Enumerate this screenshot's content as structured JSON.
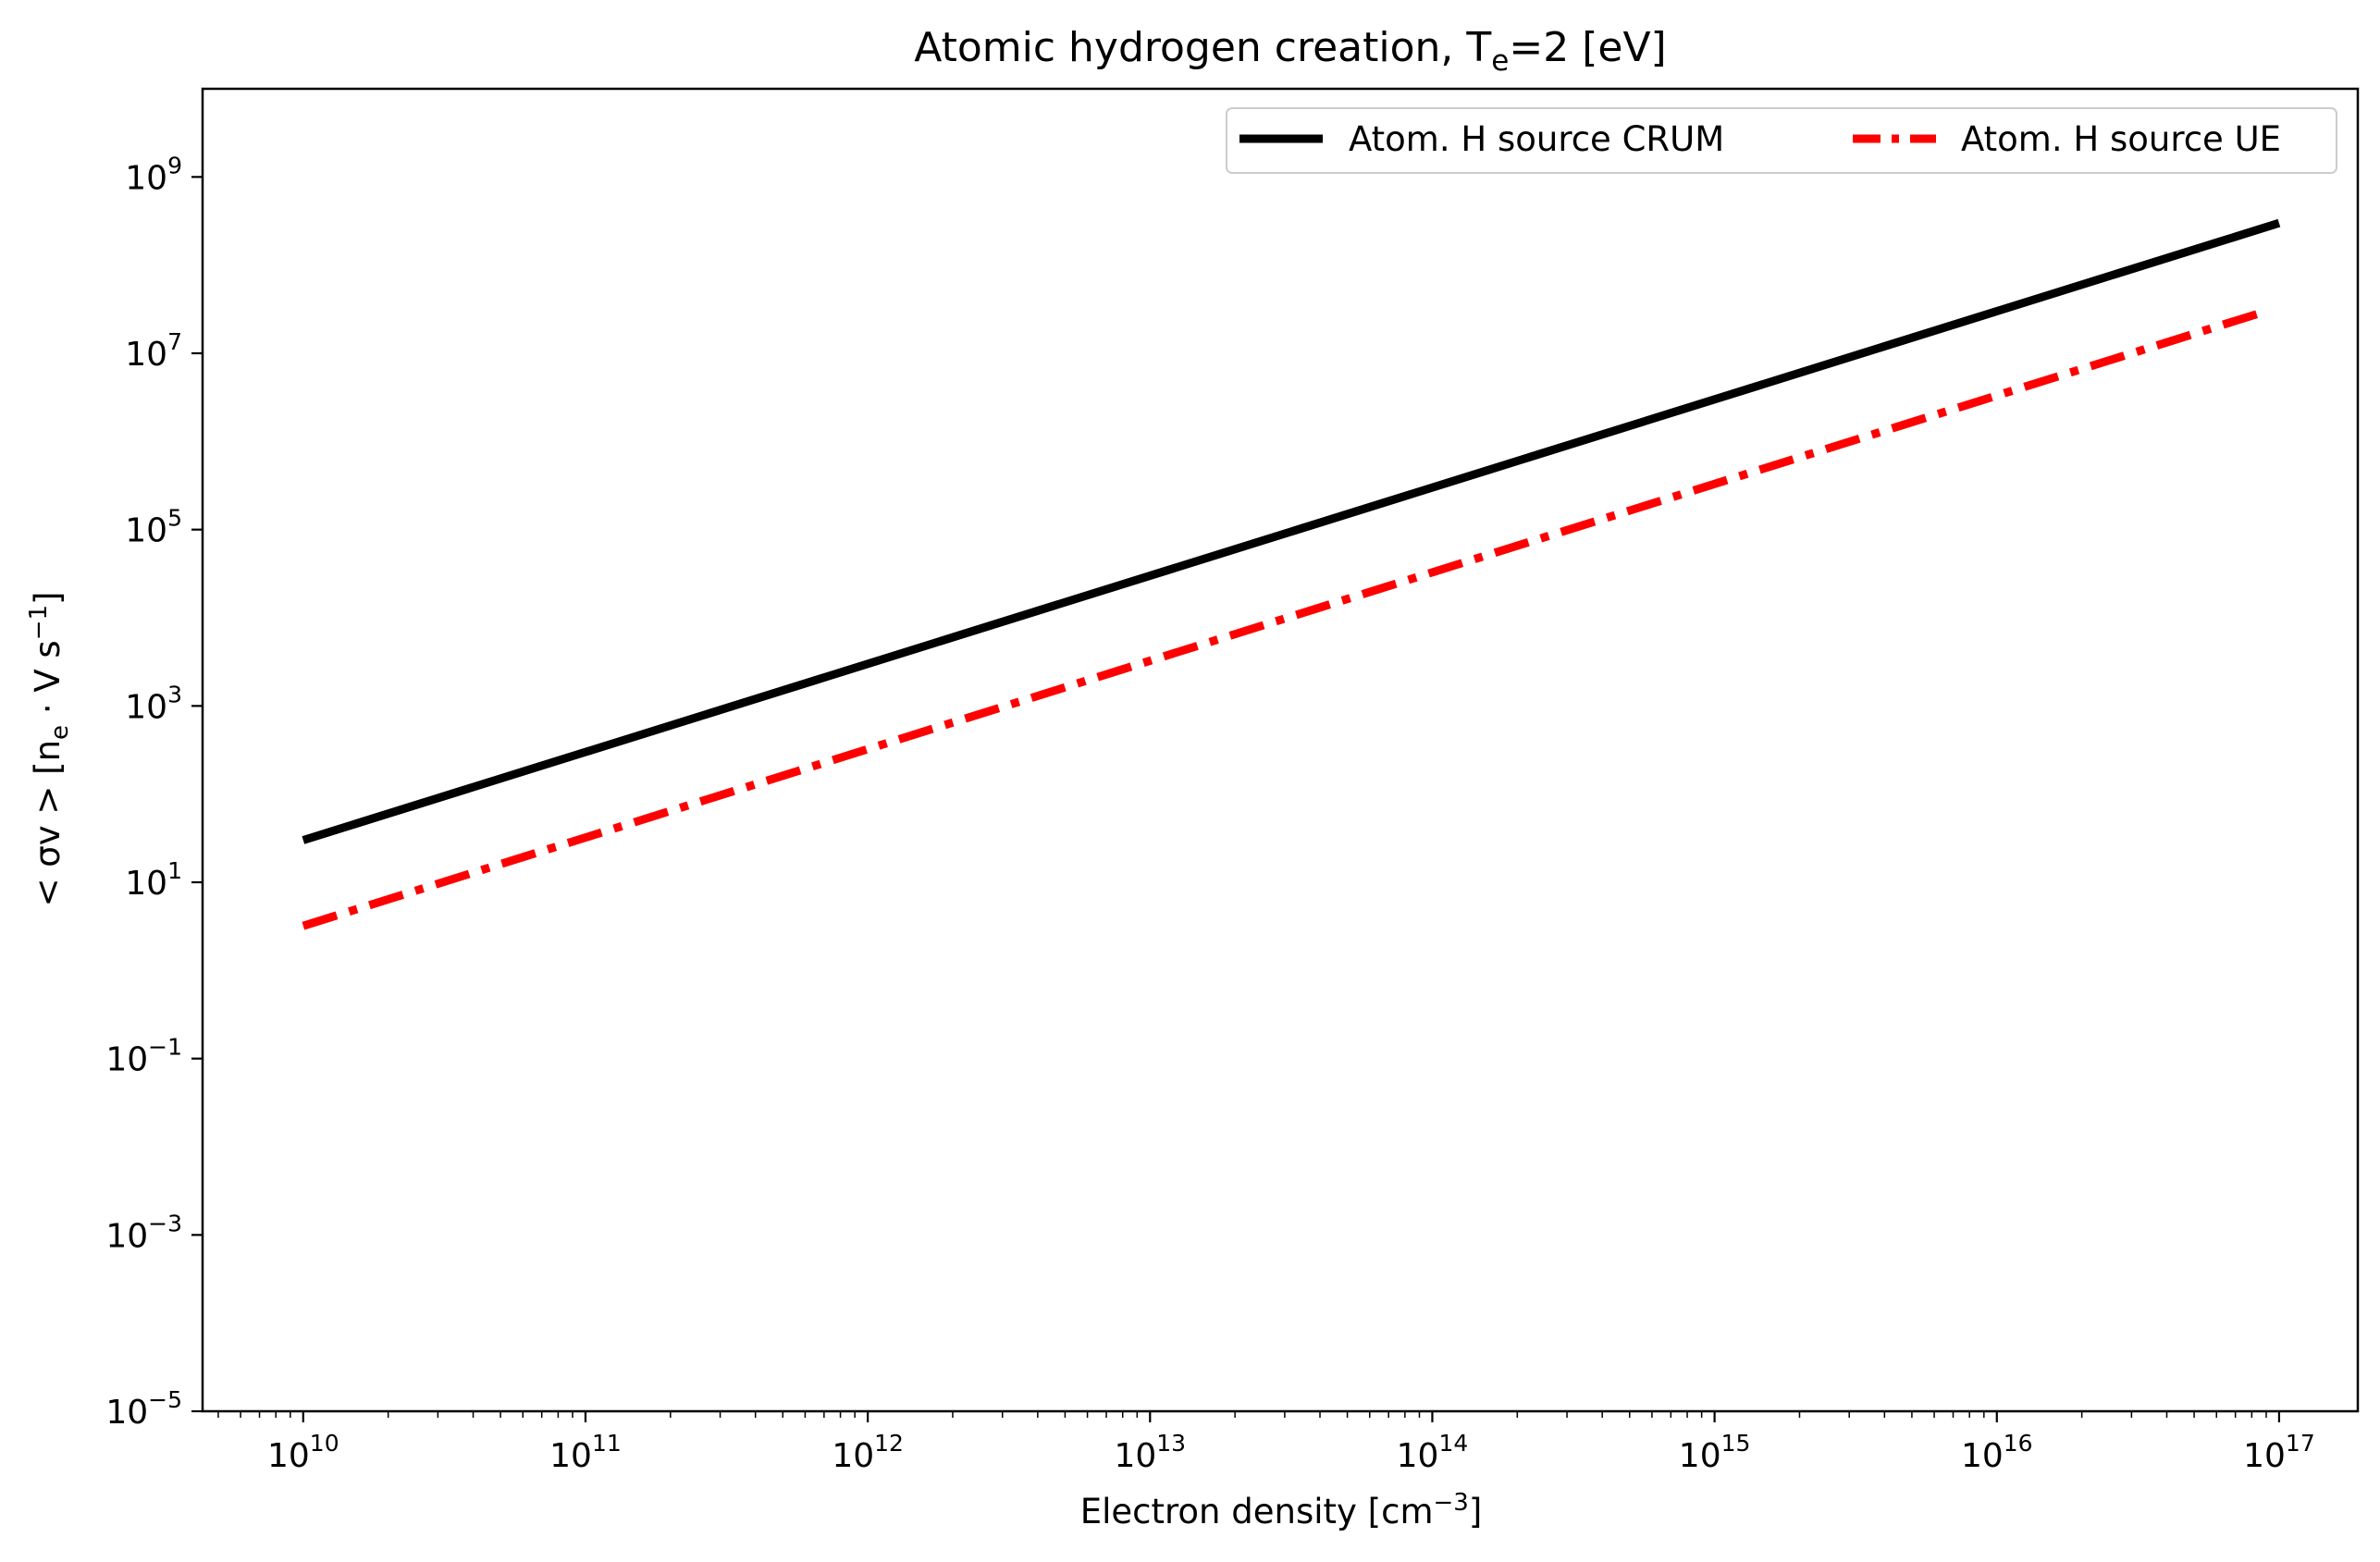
{
  "chart_data": {
    "type": "line",
    "title": {
      "pre": "Atomic hydrogen creation, T",
      "sub": "e",
      "post": "=2 [eV]"
    },
    "xlabel": {
      "pre": "Electron density [cm",
      "sup": "−3",
      "post": "]"
    },
    "ylabel": {
      "p1": "< σv >  [n",
      "sub": "e",
      "p2": " · V   s",
      "sup": "−1",
      "p3": "]"
    },
    "xscale": "log",
    "yscale": "log",
    "xlim": [
      4400000000.0,
      1.9e+17
    ],
    "ylim": [
      1e-05,
      10000000000.0
    ],
    "grid": false,
    "legend_position": "upper-right",
    "xticks": [
      {
        "value": 10000000000.0,
        "base": "10",
        "exp": "10"
      },
      {
        "value": 100000000000.0,
        "base": "10",
        "exp": "11"
      },
      {
        "value": 1000000000000.0,
        "base": "10",
        "exp": "12"
      },
      {
        "value": 10000000000000.0,
        "base": "10",
        "exp": "13"
      },
      {
        "value": 100000000000000.0,
        "base": "10",
        "exp": "14"
      },
      {
        "value": 1000000000000000.0,
        "base": "10",
        "exp": "15"
      },
      {
        "value": 1e+16,
        "base": "10",
        "exp": "16"
      },
      {
        "value": 1e+17,
        "base": "10",
        "exp": "17"
      }
    ],
    "yticks": [
      {
        "value": 1e-05,
        "base": "10",
        "exp": "−5"
      },
      {
        "value": 0.001,
        "base": "10",
        "exp": "−3"
      },
      {
        "value": 0.1,
        "base": "10",
        "exp": "−1"
      },
      {
        "value": 10.0,
        "base": "10",
        "exp": "1"
      },
      {
        "value": 1000.0,
        "base": "10",
        "exp": "3"
      },
      {
        "value": 100000.0,
        "base": "10",
        "exp": "5"
      },
      {
        "value": 10000000.0,
        "base": "10",
        "exp": "7"
      },
      {
        "value": 1000000000.0,
        "base": "10",
        "exp": "9"
      }
    ],
    "series": [
      {
        "name": "Atom. H source CRUM",
        "color": "#000000",
        "style": "solid",
        "x": [
          10000000000.0,
          1e+17
        ],
        "y": [
          30,
          300000000.0
        ]
      },
      {
        "name": "Atom. H source UE",
        "color": "#ff0000",
        "style": "dashdot",
        "x": [
          10000000000.0,
          9e+16
        ],
        "y": [
          3.2,
          30000000.0
        ]
      }
    ]
  }
}
